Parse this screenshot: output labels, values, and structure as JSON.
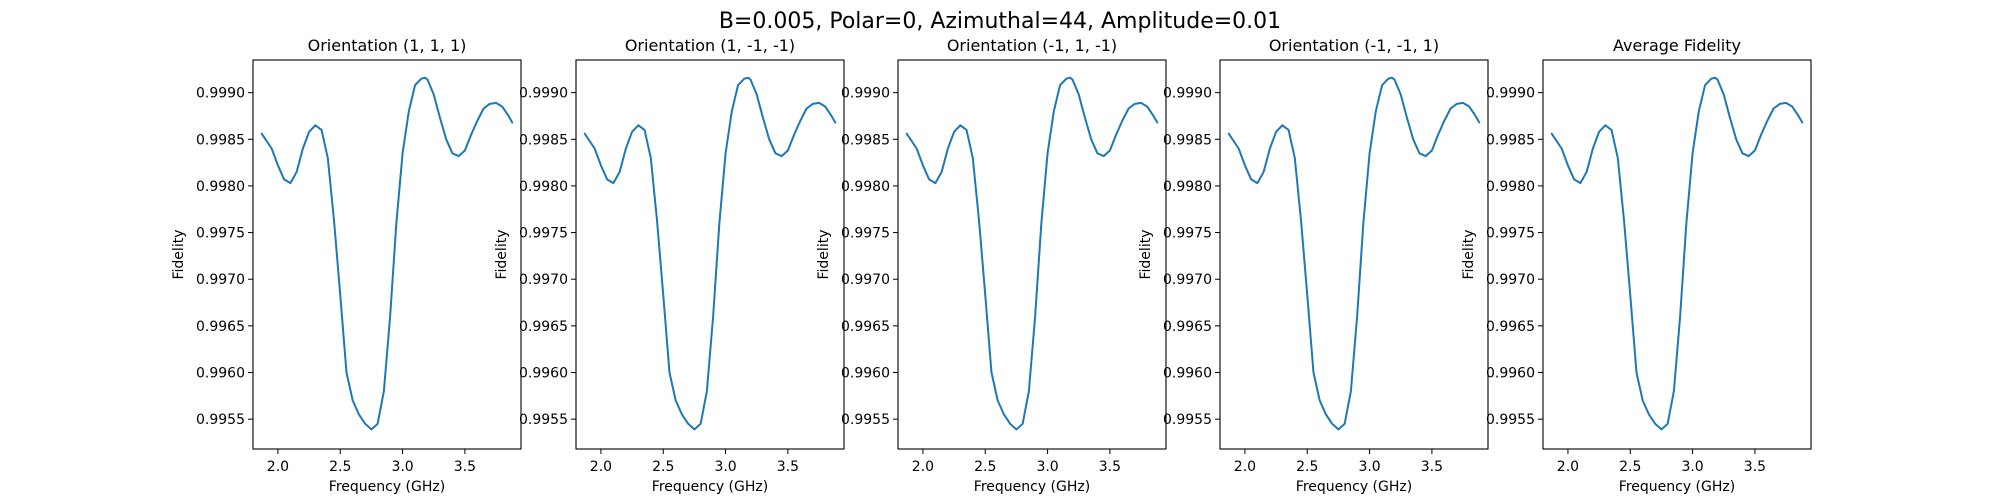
{
  "figure": {
    "suptitle": "B=0.005, Polar=0, Azimuthal=44, Amplitude=0.01"
  },
  "style": {
    "line_color": "#1f77b4",
    "axes_color": "#000000",
    "background": "#ffffff"
  },
  "chart_data": [
    {
      "type": "line",
      "title": "Orientation (1, 1, 1)",
      "xlabel": "Frequency (GHz)",
      "ylabel": "Fidelity",
      "xlim": [
        1.8,
        3.95
      ],
      "ylim": [
        0.99518,
        0.99935
      ],
      "xticks": [
        "2.0",
        "2.5",
        "3.0",
        "3.5"
      ],
      "yticks": [
        "0.9955",
        "0.9960",
        "0.9965",
        "0.9970",
        "0.9975",
        "0.9980",
        "0.9985",
        "0.9990"
      ],
      "grid": false,
      "series": [
        {
          "x": [
            1.87,
            1.95,
            2.0,
            2.05,
            2.1,
            2.15,
            2.2,
            2.25,
            2.3,
            2.35,
            2.4,
            2.45,
            2.5,
            2.55,
            2.6,
            2.65,
            2.7,
            2.75,
            2.8,
            2.85,
            2.9,
            2.95,
            3.0,
            3.05,
            3.1,
            3.15,
            3.18,
            3.2,
            3.25,
            3.3,
            3.35,
            3.4,
            3.45,
            3.5,
            3.55,
            3.6,
            3.65,
            3.7,
            3.75,
            3.8,
            3.85,
            3.88
          ],
          "y": [
            0.99856,
            0.9984,
            0.99822,
            0.99807,
            0.99803,
            0.99815,
            0.9984,
            0.99858,
            0.99865,
            0.9986,
            0.9983,
            0.99763,
            0.99683,
            0.996,
            0.9957,
            0.99555,
            0.99545,
            0.99539,
            0.99545,
            0.9958,
            0.9966,
            0.9976,
            0.99835,
            0.9988,
            0.99908,
            0.99915,
            0.99916,
            0.99914,
            0.99898,
            0.99873,
            0.9985,
            0.99835,
            0.99832,
            0.99838,
            0.99855,
            0.9987,
            0.99883,
            0.99888,
            0.99889,
            0.99885,
            0.99875,
            0.99868
          ]
        }
      ]
    },
    {
      "type": "line",
      "title": "Orientation (1, -1, -1)",
      "xlabel": "Frequency (GHz)",
      "ylabel": "Fidelity",
      "xlim": [
        1.8,
        3.95
      ],
      "ylim": [
        0.99518,
        0.99935
      ],
      "xticks": [
        "2.0",
        "2.5",
        "3.0",
        "3.5"
      ],
      "yticks": [
        "0.9955",
        "0.9960",
        "0.9965",
        "0.9970",
        "0.9975",
        "0.9980",
        "0.9985",
        "0.9990"
      ],
      "grid": false,
      "series": [
        {
          "x": [
            1.87,
            1.95,
            2.0,
            2.05,
            2.1,
            2.15,
            2.2,
            2.25,
            2.3,
            2.35,
            2.4,
            2.45,
            2.5,
            2.55,
            2.6,
            2.65,
            2.7,
            2.75,
            2.8,
            2.85,
            2.9,
            2.95,
            3.0,
            3.05,
            3.1,
            3.15,
            3.18,
            3.2,
            3.25,
            3.3,
            3.35,
            3.4,
            3.45,
            3.5,
            3.55,
            3.6,
            3.65,
            3.7,
            3.75,
            3.8,
            3.85,
            3.88
          ],
          "y": [
            0.99856,
            0.9984,
            0.99822,
            0.99807,
            0.99803,
            0.99815,
            0.9984,
            0.99858,
            0.99865,
            0.9986,
            0.9983,
            0.99763,
            0.99683,
            0.996,
            0.9957,
            0.99555,
            0.99545,
            0.99539,
            0.99545,
            0.9958,
            0.9966,
            0.9976,
            0.99835,
            0.9988,
            0.99908,
            0.99915,
            0.99916,
            0.99914,
            0.99898,
            0.99873,
            0.9985,
            0.99835,
            0.99832,
            0.99838,
            0.99855,
            0.9987,
            0.99883,
            0.99888,
            0.99889,
            0.99885,
            0.99875,
            0.99868
          ]
        }
      ]
    },
    {
      "type": "line",
      "title": "Orientation (-1, 1, -1)",
      "xlabel": "Frequency (GHz)",
      "ylabel": "Fidelity",
      "xlim": [
        1.8,
        3.95
      ],
      "ylim": [
        0.99518,
        0.99935
      ],
      "xticks": [
        "2.0",
        "2.5",
        "3.0",
        "3.5"
      ],
      "yticks": [
        "0.9955",
        "0.9960",
        "0.9965",
        "0.9970",
        "0.9975",
        "0.9980",
        "0.9985",
        "0.9990"
      ],
      "grid": false,
      "series": [
        {
          "x": [
            1.87,
            1.95,
            2.0,
            2.05,
            2.1,
            2.15,
            2.2,
            2.25,
            2.3,
            2.35,
            2.4,
            2.45,
            2.5,
            2.55,
            2.6,
            2.65,
            2.7,
            2.75,
            2.8,
            2.85,
            2.9,
            2.95,
            3.0,
            3.05,
            3.1,
            3.15,
            3.18,
            3.2,
            3.25,
            3.3,
            3.35,
            3.4,
            3.45,
            3.5,
            3.55,
            3.6,
            3.65,
            3.7,
            3.75,
            3.8,
            3.85,
            3.88
          ],
          "y": [
            0.99856,
            0.9984,
            0.99822,
            0.99807,
            0.99803,
            0.99815,
            0.9984,
            0.99858,
            0.99865,
            0.9986,
            0.9983,
            0.99763,
            0.99683,
            0.996,
            0.9957,
            0.99555,
            0.99545,
            0.99539,
            0.99545,
            0.9958,
            0.9966,
            0.9976,
            0.99835,
            0.9988,
            0.99908,
            0.99915,
            0.99916,
            0.99914,
            0.99898,
            0.99873,
            0.9985,
            0.99835,
            0.99832,
            0.99838,
            0.99855,
            0.9987,
            0.99883,
            0.99888,
            0.99889,
            0.99885,
            0.99875,
            0.99868
          ]
        }
      ]
    },
    {
      "type": "line",
      "title": "Orientation (-1, -1, 1)",
      "xlabel": "Frequency (GHz)",
      "ylabel": "Fidelity",
      "xlim": [
        1.8,
        3.95
      ],
      "ylim": [
        0.99518,
        0.99935
      ],
      "xticks": [
        "2.0",
        "2.5",
        "3.0",
        "3.5"
      ],
      "yticks": [
        "0.9955",
        "0.9960",
        "0.9965",
        "0.9970",
        "0.9975",
        "0.9980",
        "0.9985",
        "0.9990"
      ],
      "grid": false,
      "series": [
        {
          "x": [
            1.87,
            1.95,
            2.0,
            2.05,
            2.1,
            2.15,
            2.2,
            2.25,
            2.3,
            2.35,
            2.4,
            2.45,
            2.5,
            2.55,
            2.6,
            2.65,
            2.7,
            2.75,
            2.8,
            2.85,
            2.9,
            2.95,
            3.0,
            3.05,
            3.1,
            3.15,
            3.18,
            3.2,
            3.25,
            3.3,
            3.35,
            3.4,
            3.45,
            3.5,
            3.55,
            3.6,
            3.65,
            3.7,
            3.75,
            3.8,
            3.85,
            3.88
          ],
          "y": [
            0.99856,
            0.9984,
            0.99822,
            0.99807,
            0.99803,
            0.99815,
            0.9984,
            0.99858,
            0.99865,
            0.9986,
            0.9983,
            0.99763,
            0.99683,
            0.996,
            0.9957,
            0.99555,
            0.99545,
            0.99539,
            0.99545,
            0.9958,
            0.9966,
            0.9976,
            0.99835,
            0.9988,
            0.99908,
            0.99915,
            0.99916,
            0.99914,
            0.99898,
            0.99873,
            0.9985,
            0.99835,
            0.99832,
            0.99838,
            0.99855,
            0.9987,
            0.99883,
            0.99888,
            0.99889,
            0.99885,
            0.99875,
            0.99868
          ]
        }
      ]
    },
    {
      "type": "line",
      "title": "Average Fidelity",
      "xlabel": "Frequency (GHz)",
      "ylabel": "Fidelity",
      "xlim": [
        1.8,
        3.95
      ],
      "ylim": [
        0.99518,
        0.99935
      ],
      "xticks": [
        "2.0",
        "2.5",
        "3.0",
        "3.5"
      ],
      "yticks": [
        "0.9955",
        "0.9960",
        "0.9965",
        "0.9970",
        "0.9975",
        "0.9980",
        "0.9985",
        "0.9990"
      ],
      "grid": false,
      "series": [
        {
          "x": [
            1.87,
            1.95,
            2.0,
            2.05,
            2.1,
            2.15,
            2.2,
            2.25,
            2.3,
            2.35,
            2.4,
            2.45,
            2.5,
            2.55,
            2.6,
            2.65,
            2.7,
            2.75,
            2.8,
            2.85,
            2.9,
            2.95,
            3.0,
            3.05,
            3.1,
            3.15,
            3.18,
            3.2,
            3.25,
            3.3,
            3.35,
            3.4,
            3.45,
            3.5,
            3.55,
            3.6,
            3.65,
            3.7,
            3.75,
            3.8,
            3.85,
            3.88
          ],
          "y": [
            0.99856,
            0.9984,
            0.99822,
            0.99807,
            0.99803,
            0.99815,
            0.9984,
            0.99858,
            0.99865,
            0.9986,
            0.9983,
            0.99763,
            0.99683,
            0.996,
            0.9957,
            0.99555,
            0.99545,
            0.99539,
            0.99545,
            0.9958,
            0.9966,
            0.9976,
            0.99835,
            0.9988,
            0.99908,
            0.99915,
            0.99916,
            0.99914,
            0.99898,
            0.99873,
            0.9985,
            0.99835,
            0.99832,
            0.99838,
            0.99855,
            0.9987,
            0.99883,
            0.99888,
            0.99889,
            0.99885,
            0.99875,
            0.99868
          ]
        }
      ]
    }
  ]
}
